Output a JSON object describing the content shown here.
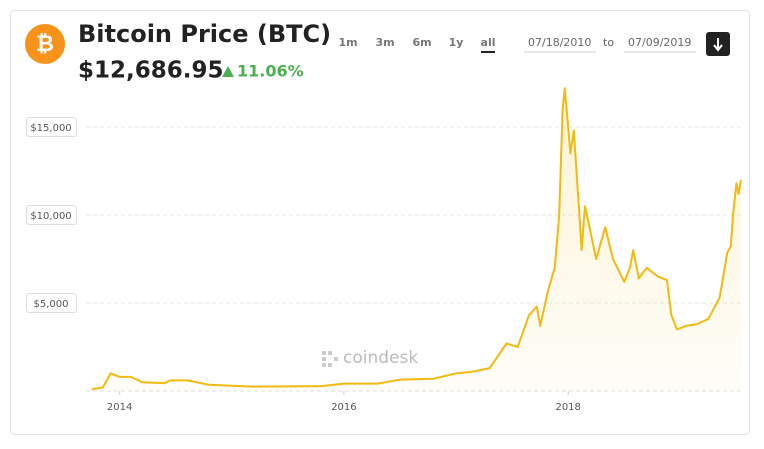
{
  "header": {
    "logo": "₿",
    "title": "Bitcoin Price (BTC)",
    "price": "$12,686.95",
    "change": "11.06%",
    "ranges": [
      "1m",
      "3m",
      "6m",
      "1y",
      "all"
    ],
    "selected_range": "all",
    "date_from": "07/18/2010",
    "date_separator": "to",
    "date_to": "07/09/2019",
    "watermark": "coindesk"
  },
  "chart_data": {
    "type": "line",
    "x": [
      2013.75,
      2013.85,
      2013.92,
      2014.0,
      2014.1,
      2014.2,
      2014.4,
      2014.45,
      2014.6,
      2014.8,
      2015.0,
      2015.2,
      2015.5,
      2015.8,
      2016.0,
      2016.3,
      2016.5,
      2016.8,
      2017.0,
      2017.15,
      2017.3,
      2017.45,
      2017.55,
      2017.65,
      2017.72,
      2017.75,
      2017.82,
      2017.88,
      2017.92,
      2017.95,
      2017.97,
      2018.02,
      2018.05,
      2018.1,
      2018.12,
      2018.15,
      2018.25,
      2018.33,
      2018.4,
      2018.5,
      2018.55,
      2018.58,
      2018.63,
      2018.7,
      2018.8,
      2018.88,
      2018.92,
      2018.97,
      2019.05,
      2019.15,
      2019.25,
      2019.35,
      2019.42,
      2019.45,
      2019.47,
      2019.5,
      2019.52,
      2019.54
    ],
    "series": [
      {
        "color": "#f2b90f",
        "values": [
          100,
          200,
          1000,
          800,
          800,
          500,
          450,
          600,
          600,
          350,
          300,
          250,
          260,
          280,
          420,
          420,
          650,
          700,
          1000,
          1100,
          1300,
          2700,
          2500,
          4300,
          4800,
          3700,
          5700,
          7000,
          10000,
          16000,
          17200,
          13500,
          14800,
          10000,
          8000,
          10500,
          7500,
          9300,
          7500,
          6200,
          7000,
          8000,
          6400,
          7000,
          6500,
          6300,
          4300,
          3500,
          3700,
          3800,
          4100,
          5300,
          7900,
          8200,
          10000,
          11800,
          11200,
          12000
        ]
      }
    ],
    "xlim": [
      2013.7,
      2019.55
    ],
    "xticks": [
      2014,
      2016,
      2018
    ],
    "ylim": [
      0,
      17500
    ],
    "yticks": [
      {
        "value": 5000,
        "label": "$5,000"
      },
      {
        "value": 10000,
        "label": "$10,000"
      },
      {
        "value": 15000,
        "label": "$15,000"
      }
    ],
    "grid": true
  }
}
